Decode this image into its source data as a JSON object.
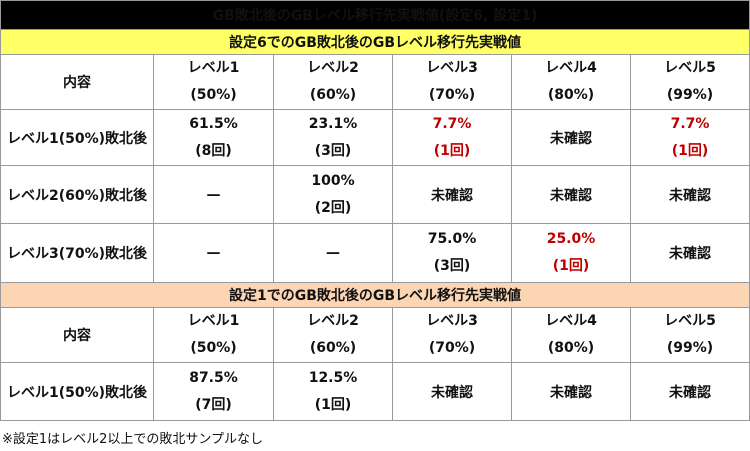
{
  "title": "GB敗北後のGBレベル移行先実戦値(設定6, 設定1)",
  "section6": {
    "heading": "設定6でのGB敗北後のGBレベル移行先実戦値",
    "header": {
      "label": "内容",
      "columns": [
        {
          "name": "レベル1",
          "sub": "(50%)"
        },
        {
          "name": "レベル2",
          "sub": "(60%)"
        },
        {
          "name": "レベル3",
          "sub": "(70%)"
        },
        {
          "name": "レベル4",
          "sub": "(80%)"
        },
        {
          "name": "レベル5",
          "sub": "(99%)"
        }
      ]
    },
    "rows": [
      {
        "label": "レベル1(50%)敗北後",
        "cells": [
          {
            "value": "61.5%",
            "count": "(8回)",
            "red": false
          },
          {
            "value": "23.1%",
            "count": "(3回)",
            "red": false
          },
          {
            "value": "7.7%",
            "count": "(1回)",
            "red": true
          },
          {
            "value": "未確認",
            "count": "",
            "red": false
          },
          {
            "value": "7.7%",
            "count": "(1回)",
            "red": true
          }
        ]
      },
      {
        "label": "レベル2(60%)敗北後",
        "cells": [
          {
            "value": "—",
            "count": "",
            "red": false
          },
          {
            "value": "100%",
            "count": "(2回)",
            "red": false
          },
          {
            "value": "未確認",
            "count": "",
            "red": false
          },
          {
            "value": "未確認",
            "count": "",
            "red": false
          },
          {
            "value": "未確認",
            "count": "",
            "red": false
          }
        ]
      },
      {
        "label": "レベル3(70%)敗北後",
        "cells": [
          {
            "value": "—",
            "count": "",
            "red": false
          },
          {
            "value": "—",
            "count": "",
            "red": false
          },
          {
            "value": "75.0%",
            "count": "(3回)",
            "red": false
          },
          {
            "value": "25.0%",
            "count": "(1回)",
            "red": true
          },
          {
            "value": "未確認",
            "count": "",
            "red": false
          }
        ]
      }
    ]
  },
  "section1": {
    "heading": "設定1でのGB敗北後のGBレベル移行先実戦値",
    "header": {
      "label": "内容",
      "columns": [
        {
          "name": "レベル1",
          "sub": "(50%)"
        },
        {
          "name": "レベル2",
          "sub": "(60%)"
        },
        {
          "name": "レベル3",
          "sub": "(70%)"
        },
        {
          "name": "レベル4",
          "sub": "(80%)"
        },
        {
          "name": "レベル5",
          "sub": "(99%)"
        }
      ]
    },
    "rows": [
      {
        "label": "レベル1(50%)敗北後",
        "cells": [
          {
            "value": "87.5%",
            "count": "(7回)",
            "red": false
          },
          {
            "value": "12.5%",
            "count": "(1回)",
            "red": false
          },
          {
            "value": "未確認",
            "count": "",
            "red": false
          },
          {
            "value": "未確認",
            "count": "",
            "red": false
          },
          {
            "value": "未確認",
            "count": "",
            "red": false
          }
        ]
      }
    ]
  },
  "colors": {
    "title_bg": "#000000",
    "section6_bg": "#ffff66",
    "section1_bg": "#fcd5b4",
    "highlight_red": "#c00000"
  },
  "note": "※設定1はレベル2以上での敗北サンプルなし"
}
